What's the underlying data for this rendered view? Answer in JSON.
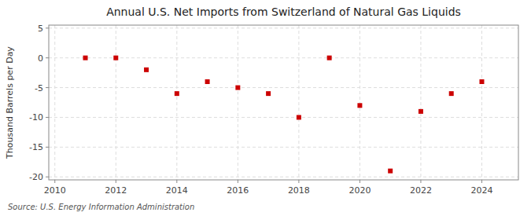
{
  "chart_data": {
    "type": "scatter",
    "title": "Annual U.S. Net Imports from Switzerland of Natural Gas Liquids",
    "y_label": "Thousand Barrels per Day",
    "annotations": [
      "Source: U.S. Energy Information Administration"
    ],
    "x": [
      2011,
      2012,
      2013,
      2014,
      2015,
      2016,
      2017,
      2018,
      2019,
      2020,
      2021,
      2022,
      2023,
      2024
    ],
    "values": [
      0.0,
      0.0,
      -2.0,
      -6.0,
      -4.0,
      -5.0,
      -6.0,
      -10.0,
      0.0,
      -8.0,
      -19.0,
      -9.0,
      -6.0,
      -4.0
    ],
    "color": "#cc0000",
    "marker": "square",
    "grid": true,
    "xlim": [
      2009.8,
      2025.2
    ],
    "ylim": [
      -20.5,
      5.5
    ],
    "xticks": [
      2010,
      2012,
      2014,
      2016,
      2018,
      2020,
      2022,
      2024
    ],
    "yticks": [
      5,
      0,
      -5,
      -10,
      -15,
      -20
    ]
  }
}
